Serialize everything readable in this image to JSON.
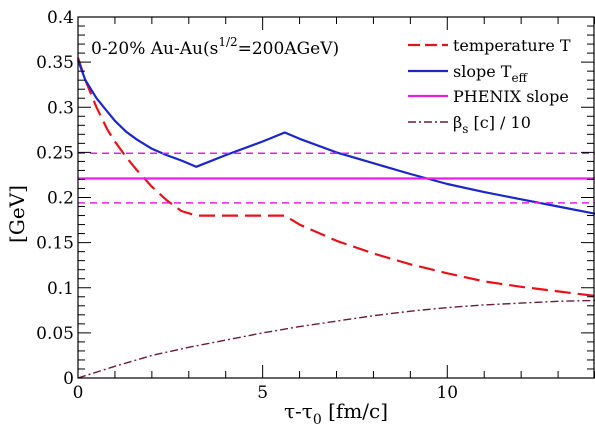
{
  "chart_data": {
    "type": "line",
    "title": "",
    "annotation": "0-20% Au-Au(s^1/2=200AGeV)",
    "annotation_parts": {
      "main": "0-20% Au-Au(s",
      "sup": "1/2",
      "tail": "=200AGeV)"
    },
    "xlabel": {
      "main": "τ-τ",
      "sub": "0",
      "tail": " [fm/c]"
    },
    "ylabel": "[GeV]",
    "xlim": [
      0,
      14
    ],
    "ylim": [
      0,
      0.4
    ],
    "xticks": [
      0,
      5,
      10
    ],
    "xtick_labels": [
      "0",
      "5",
      "10"
    ],
    "yticks": [
      0,
      0.05,
      0.1,
      0.15,
      0.2,
      0.25,
      0.3,
      0.35,
      0.4
    ],
    "ytick_labels": [
      "0",
      "0.05",
      "0.1",
      "0.15",
      "0.2",
      "0.25",
      "0.3",
      "0.35",
      "0.4"
    ],
    "legend_position": "top-right",
    "grid": false,
    "series": [
      {
        "name": "temperature T",
        "legend": {
          "main": "temperature T",
          "sub": ""
        },
        "color": "#e8101a",
        "dash": "long-dash",
        "x": [
          0,
          0.2,
          0.5,
          0.8,
          1.0,
          1.3,
          1.6,
          2.0,
          2.4,
          2.8,
          3.2,
          4.0,
          5.0,
          5.6,
          6.0,
          7.0,
          8.0,
          9.0,
          10.0,
          11.0,
          12.0,
          13.0,
          14.0
        ],
        "y": [
          0.355,
          0.33,
          0.3,
          0.275,
          0.262,
          0.245,
          0.23,
          0.212,
          0.197,
          0.185,
          0.18,
          0.18,
          0.18,
          0.18,
          0.17,
          0.152,
          0.138,
          0.126,
          0.116,
          0.107,
          0.101,
          0.096,
          0.091
        ]
      },
      {
        "name": "slope T_eff",
        "legend": {
          "main": "slope T",
          "sub": "eff"
        },
        "color": "#1a26cc",
        "dash": "solid",
        "x": [
          0,
          0.2,
          0.5,
          0.8,
          1.0,
          1.3,
          1.6,
          2.0,
          2.4,
          2.8,
          3.2,
          4.0,
          5.0,
          5.6,
          6.0,
          7.0,
          8.0,
          9.0,
          10.0,
          11.0,
          12.0,
          13.0,
          14.0
        ],
        "y": [
          0.352,
          0.33,
          0.31,
          0.295,
          0.285,
          0.273,
          0.264,
          0.254,
          0.247,
          0.241,
          0.234,
          0.247,
          0.262,
          0.272,
          0.265,
          0.25,
          0.238,
          0.226,
          0.215,
          0.206,
          0.198,
          0.19,
          0.182
        ]
      },
      {
        "name": "PHENIX slope",
        "legend": {
          "main": "PHENIX slope",
          "sub": ""
        },
        "color": "#e81ee8",
        "dash": "solid",
        "x": [
          0,
          14
        ],
        "y": [
          0.221,
          0.221
        ],
        "band": [
          0.194,
          0.249
        ]
      },
      {
        "name": "βs [c] / 10",
        "legend": {
          "main": "β",
          "sub": "s",
          "tail": " [c]  / 10"
        },
        "color": "#6b1a3e",
        "dash": "dash-dot",
        "x": [
          0,
          1,
          2,
          3,
          4,
          5,
          6,
          7,
          8,
          9,
          10,
          11,
          12,
          13,
          14
        ],
        "y": [
          0,
          0.013,
          0.025,
          0.034,
          0.042,
          0.05,
          0.057,
          0.063,
          0.069,
          0.074,
          0.078,
          0.081,
          0.083,
          0.085,
          0.086
        ]
      }
    ]
  }
}
